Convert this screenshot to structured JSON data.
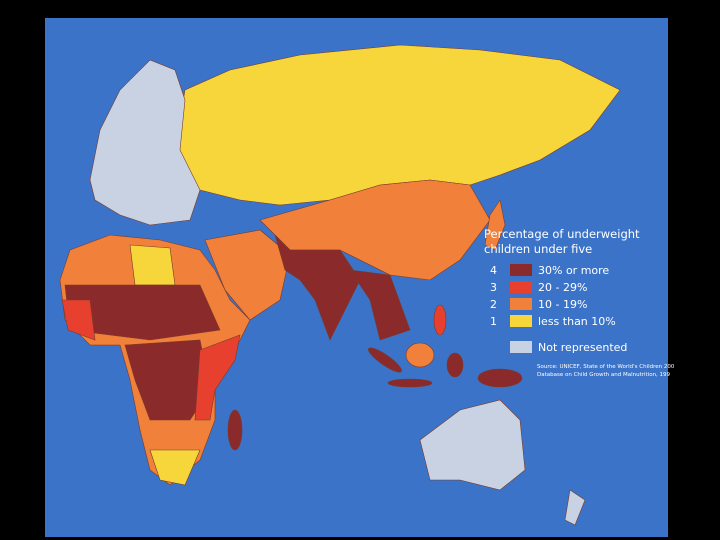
{
  "legend": {
    "title": [
      "Percentage of underweight",
      "children under five"
    ],
    "items": [
      {
        "number": 4,
        "label": "30% or more"
      },
      {
        "number": 3,
        "label": "20 - 29%"
      },
      {
        "number": 2,
        "label": "10 - 19%"
      },
      {
        "number": 1,
        "label": "less than 10%"
      }
    ],
    "not_represented": "Not represented",
    "source": [
      "Source: UNICEF, State of the World's Children 200",
      "Database on Child Growth and Malnutrition, 199"
    ]
  }
}
